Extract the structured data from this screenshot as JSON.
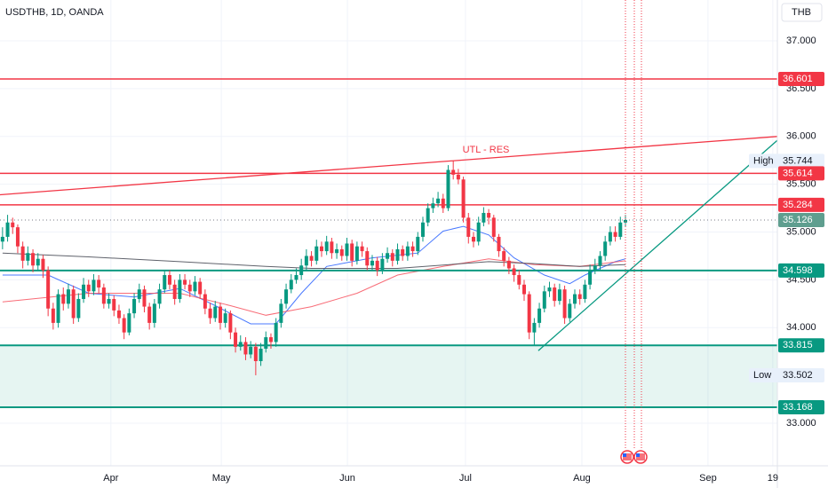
{
  "chart_data": {
    "type": "candlestick",
    "title": "USDTHB, 1D, OANDA",
    "currency": "THB",
    "up_color": "#089981",
    "down_color": "#f23645",
    "x": [
      0,
      1,
      2,
      3,
      4,
      5,
      6,
      7,
      8,
      9,
      10,
      11,
      12,
      13,
      14,
      15,
      16,
      17,
      18,
      19,
      20,
      21,
      22,
      23,
      24,
      25,
      26,
      27,
      28,
      29,
      30,
      31,
      32,
      33,
      34,
      35,
      36,
      37,
      38,
      39,
      40,
      41,
      42,
      43,
      44,
      45,
      46,
      47,
      48,
      49,
      50,
      51,
      52,
      53,
      54,
      55,
      56,
      57,
      58,
      59,
      60,
      61,
      62,
      63,
      64,
      65,
      66,
      67,
      68,
      69,
      70,
      71,
      72,
      73,
      74,
      75,
      76,
      77,
      78,
      79,
      80,
      81,
      82,
      83,
      84,
      85,
      86,
      87,
      88,
      89,
      90,
      91,
      92,
      93,
      94,
      95,
      96,
      97,
      98,
      99,
      100,
      101,
      102,
      103,
      104,
      105,
      106,
      107,
      108,
      109,
      110,
      111,
      112,
      113,
      114,
      115,
      116,
      117,
      118,
      119,
      120,
      121,
      122,
      123
    ],
    "ohlc": [
      [
        34.9,
        35.05,
        34.82,
        34.95
      ],
      [
        34.95,
        35.18,
        34.9,
        35.1
      ],
      [
        35.1,
        35.15,
        34.98,
        35.05
      ],
      [
        35.05,
        35.08,
        34.78,
        34.85
      ],
      [
        34.85,
        34.9,
        34.62,
        34.7
      ],
      [
        34.7,
        34.85,
        34.65,
        34.78
      ],
      [
        34.78,
        34.82,
        34.58,
        34.65
      ],
      [
        34.65,
        34.78,
        34.6,
        34.72
      ],
      [
        34.72,
        34.76,
        34.52,
        34.6
      ],
      [
        34.6,
        34.64,
        34.12,
        34.2
      ],
      [
        34.2,
        34.26,
        33.98,
        34.05
      ],
      [
        34.05,
        34.4,
        34.0,
        34.35
      ],
      [
        34.35,
        34.42,
        34.18,
        34.25
      ],
      [
        34.25,
        34.46,
        34.2,
        34.4
      ],
      [
        34.4,
        34.44,
        34.04,
        34.1
      ],
      [
        34.1,
        34.36,
        34.06,
        34.3
      ],
      [
        34.3,
        34.52,
        34.26,
        34.45
      ],
      [
        34.45,
        34.5,
        34.32,
        34.38
      ],
      [
        34.38,
        34.56,
        34.34,
        34.5
      ],
      [
        34.5,
        34.55,
        34.36,
        34.42
      ],
      [
        34.42,
        34.46,
        34.2,
        34.25
      ],
      [
        34.25,
        34.36,
        34.2,
        34.3
      ],
      [
        34.3,
        34.34,
        34.12,
        34.18
      ],
      [
        34.18,
        34.24,
        34.04,
        34.1
      ],
      [
        34.1,
        34.14,
        33.88,
        33.95
      ],
      [
        33.95,
        34.2,
        33.92,
        34.15
      ],
      [
        34.15,
        34.36,
        34.1,
        34.3
      ],
      [
        34.3,
        34.46,
        34.26,
        34.4
      ],
      [
        34.4,
        34.44,
        34.16,
        34.22
      ],
      [
        34.22,
        34.26,
        33.98,
        34.05
      ],
      [
        34.05,
        34.3,
        34.0,
        34.25
      ],
      [
        34.25,
        34.46,
        34.2,
        34.4
      ],
      [
        34.4,
        34.6,
        34.36,
        34.55
      ],
      [
        34.55,
        34.6,
        34.4,
        34.45
      ],
      [
        34.45,
        34.5,
        34.24,
        34.3
      ],
      [
        34.3,
        34.56,
        34.26,
        34.5
      ],
      [
        34.5,
        34.56,
        34.4,
        34.45
      ],
      [
        34.45,
        34.5,
        34.32,
        34.38
      ],
      [
        34.38,
        34.54,
        34.34,
        34.48
      ],
      [
        34.48,
        34.52,
        34.3,
        34.35
      ],
      [
        34.35,
        34.4,
        34.14,
        34.2
      ],
      [
        34.2,
        34.26,
        34.04,
        34.1
      ],
      [
        34.1,
        34.28,
        34.06,
        34.22
      ],
      [
        34.22,
        34.26,
        33.98,
        34.05
      ],
      [
        34.05,
        34.2,
        34.0,
        34.15
      ],
      [
        34.15,
        34.18,
        33.88,
        33.95
      ],
      [
        33.95,
        34.0,
        33.74,
        33.8
      ],
      [
        33.8,
        33.92,
        33.76,
        33.85
      ],
      [
        33.85,
        33.9,
        33.66,
        33.72
      ],
      [
        33.72,
        33.86,
        33.68,
        33.8
      ],
      [
        33.8,
        33.84,
        33.502,
        33.65
      ],
      [
        33.65,
        33.84,
        33.6,
        33.78
      ],
      [
        33.78,
        33.96,
        33.74,
        33.9
      ],
      [
        33.9,
        33.94,
        33.78,
        33.85
      ],
      [
        33.85,
        34.1,
        33.8,
        34.05
      ],
      [
        34.05,
        34.3,
        34.0,
        34.25
      ],
      [
        34.25,
        34.46,
        34.2,
        34.4
      ],
      [
        34.4,
        34.56,
        34.36,
        34.5
      ],
      [
        34.5,
        34.62,
        34.46,
        34.55
      ],
      [
        34.55,
        34.72,
        34.5,
        34.65
      ],
      [
        34.65,
        34.82,
        34.6,
        34.75
      ],
      [
        34.75,
        34.8,
        34.64,
        34.7
      ],
      [
        34.7,
        34.92,
        34.66,
        34.85
      ],
      [
        34.85,
        34.9,
        34.74,
        34.8
      ],
      [
        34.8,
        34.96,
        34.76,
        34.9
      ],
      [
        34.9,
        34.94,
        34.72,
        34.78
      ],
      [
        34.78,
        34.88,
        34.72,
        34.82
      ],
      [
        34.82,
        34.86,
        34.7,
        34.75
      ],
      [
        34.75,
        34.94,
        34.7,
        34.88
      ],
      [
        34.88,
        34.92,
        34.64,
        34.7
      ],
      [
        34.7,
        34.9,
        34.66,
        34.85
      ],
      [
        34.85,
        34.9,
        34.74,
        34.8
      ],
      [
        34.8,
        34.84,
        34.6,
        34.65
      ],
      [
        34.65,
        34.76,
        34.6,
        34.7
      ],
      [
        34.7,
        34.74,
        34.54,
        34.6
      ],
      [
        34.6,
        34.78,
        34.56,
        34.72
      ],
      [
        34.72,
        34.84,
        34.68,
        34.78
      ],
      [
        34.78,
        34.82,
        34.64,
        34.7
      ],
      [
        34.7,
        34.88,
        34.66,
        34.82
      ],
      [
        34.82,
        34.86,
        34.7,
        34.75
      ],
      [
        34.75,
        34.9,
        34.7,
        34.85
      ],
      [
        34.85,
        34.9,
        34.74,
        34.8
      ],
      [
        34.8,
        35.0,
        34.76,
        34.95
      ],
      [
        34.95,
        35.16,
        34.9,
        35.1
      ],
      [
        35.1,
        35.3,
        35.06,
        35.25
      ],
      [
        35.25,
        35.36,
        35.2,
        35.3
      ],
      [
        35.3,
        35.42,
        35.26,
        35.35
      ],
      [
        35.35,
        35.4,
        35.2,
        35.25
      ],
      [
        35.25,
        35.7,
        35.22,
        35.65
      ],
      [
        35.65,
        35.744,
        35.55,
        35.6
      ],
      [
        35.6,
        35.66,
        35.5,
        35.55
      ],
      [
        35.55,
        35.58,
        35.1,
        35.15
      ],
      [
        35.15,
        35.2,
        34.88,
        34.95
      ],
      [
        34.95,
        35.0,
        34.84,
        34.9
      ],
      [
        34.9,
        35.16,
        34.86,
        35.1
      ],
      [
        35.1,
        35.26,
        35.06,
        35.2
      ],
      [
        35.2,
        35.24,
        35.08,
        35.15
      ],
      [
        35.15,
        35.18,
        34.9,
        34.95
      ],
      [
        34.95,
        34.98,
        34.74,
        34.8
      ],
      [
        34.8,
        34.84,
        34.64,
        34.7
      ],
      [
        34.7,
        34.74,
        34.56,
        34.62
      ],
      [
        34.62,
        34.66,
        34.48,
        34.55
      ],
      [
        34.55,
        34.6,
        34.4,
        34.45
      ],
      [
        34.45,
        34.5,
        34.28,
        34.35
      ],
      [
        34.35,
        34.38,
        33.88,
        33.95
      ],
      [
        33.95,
        34.1,
        33.82,
        34.05
      ],
      [
        34.05,
        34.26,
        34.0,
        34.2
      ],
      [
        34.2,
        34.44,
        34.16,
        34.38
      ],
      [
        34.38,
        34.48,
        34.32,
        34.42
      ],
      [
        34.42,
        34.46,
        34.22,
        34.28
      ],
      [
        34.28,
        34.46,
        34.24,
        34.4
      ],
      [
        34.4,
        34.44,
        34.04,
        34.1
      ],
      [
        34.1,
        34.3,
        34.06,
        34.25
      ],
      [
        34.25,
        34.4,
        34.2,
        34.35
      ],
      [
        34.35,
        34.4,
        34.24,
        34.3
      ],
      [
        34.3,
        34.5,
        34.26,
        34.45
      ],
      [
        34.45,
        34.66,
        34.4,
        34.6
      ],
      [
        34.6,
        34.72,
        34.56,
        34.65
      ],
      [
        34.65,
        34.8,
        34.6,
        34.75
      ],
      [
        34.75,
        34.96,
        34.7,
        34.9
      ],
      [
        34.9,
        35.06,
        34.86,
        35.0
      ],
      [
        35.0,
        35.06,
        34.9,
        34.95
      ],
      [
        34.95,
        35.16,
        34.92,
        35.1
      ],
      [
        35.1,
        35.18,
        35.06,
        35.126
      ]
    ],
    "xlim": [
      -0.5,
      153
    ],
    "xticks": [
      {
        "value": 21.4,
        "label": "Apr"
      },
      {
        "value": 43.2,
        "label": "May"
      },
      {
        "value": 68.1,
        "label": "Jun"
      },
      {
        "value": 91.4,
        "label": "Jul"
      },
      {
        "value": 114.4,
        "label": "Aug"
      },
      {
        "value": 139.3,
        "label": "Sep"
      },
      {
        "value": 152.1,
        "label": "19"
      }
    ],
    "ylim": [
      32.555,
      37.427
    ],
    "yticks": [
      {
        "value": 33,
        "label": "33.000"
      },
      {
        "value": 34,
        "label": "34.000"
      },
      {
        "value": 34.5,
        "label": "34.500"
      },
      {
        "value": 35,
        "label": "35.000"
      },
      {
        "value": 35.5,
        "label": "35.500"
      },
      {
        "value": 36,
        "label": "36.000"
      },
      {
        "value": 36.5,
        "label": "36.500"
      },
      {
        "value": 37,
        "label": "37.000"
      }
    ],
    "grid": true,
    "series": [
      {
        "color": "#2962ff",
        "x": [
          0,
          9,
          17,
          26,
          35,
          42,
          49,
          54,
          59,
          64,
          73,
          82,
          87,
          91,
          96,
          101,
          107,
          112,
          115,
          121,
          123
        ],
        "values": [
          34.55,
          34.55,
          34.36,
          34.32,
          34.41,
          34.23,
          34.04,
          34.04,
          34.36,
          34.64,
          34.73,
          34.78,
          35.01,
          35.06,
          34.97,
          34.73,
          34.55,
          34.46,
          34.55,
          34.69,
          34.72
        ]
      },
      {
        "color": "#f7525f",
        "x": [
          0,
          17,
          35,
          45,
          52,
          61,
          70,
          78,
          87,
          96,
          105,
          114,
          123
        ],
        "values": [
          34.27,
          34.36,
          34.36,
          34.23,
          34.13,
          34.22,
          34.36,
          34.55,
          34.64,
          34.72,
          34.66,
          34.64,
          34.7
        ]
      },
      {
        "color": "#434651",
        "x": [
          0,
          17,
          35,
          52,
          61,
          78,
          96,
          105,
          114,
          123
        ],
        "values": [
          34.78,
          34.74,
          34.69,
          34.64,
          34.62,
          34.62,
          34.69,
          34.67,
          34.64,
          34.66
        ]
      }
    ],
    "levels": [
      {
        "value": 36.601,
        "color": "#f23645"
      },
      {
        "value": 35.614,
        "color": "#f23645"
      },
      {
        "value": 35.284,
        "color": "#f23645"
      },
      {
        "value": 34.598,
        "color": "#089981"
      },
      {
        "value": 33.815,
        "color": "#089981"
      },
      {
        "value": 33.168,
        "color": "#089981"
      }
    ],
    "zone": {
      "from": 33.168,
      "to": 33.815,
      "color": "#089981"
    },
    "last_price": {
      "value": 35.126,
      "color": "#5f9e8f"
    },
    "high": {
      "label": "High",
      "value": 35.744
    },
    "low": {
      "label": "Low",
      "value": 33.502
    },
    "trendlines": [
      {
        "color": "#f23645",
        "x": [
          -0.5,
          153
        ],
        "values": [
          35.39,
          36.0
        ]
      },
      {
        "color": "#089981",
        "x": [
          105.8,
          153
        ],
        "values": [
          33.76,
          35.96
        ]
      }
    ],
    "annotation": {
      "text": "UTL - RES",
      "color": "#f23645"
    }
  }
}
